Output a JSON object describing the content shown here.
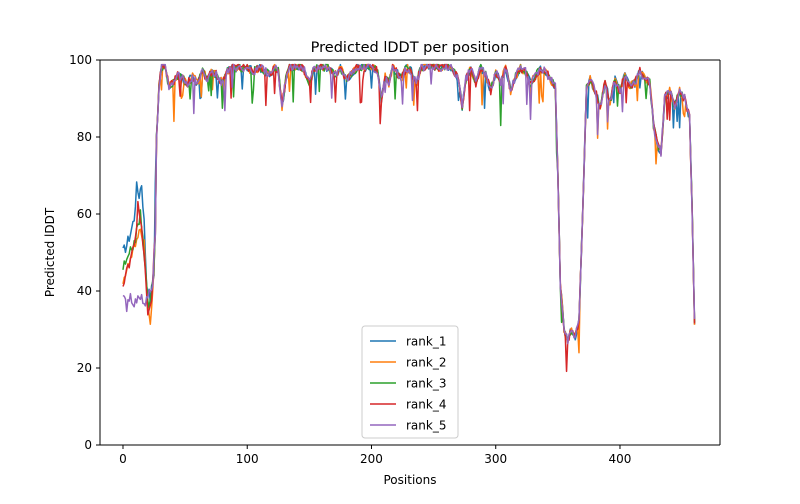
{
  "chart_data": {
    "type": "line",
    "title": "Predicted lDDT per position",
    "xlabel": "Positions",
    "ylabel": "Predicted lDDT",
    "xlim": [
      -18.5,
      480.5
    ],
    "ylim": [
      0,
      100
    ],
    "xticks": [
      0,
      100,
      200,
      300,
      400
    ],
    "xtick_labels": [
      "0",
      "100",
      "200",
      "300",
      "400"
    ],
    "yticks": [
      0,
      20,
      40,
      60,
      80,
      100
    ],
    "ytick_labels": [
      "0",
      "20",
      "40",
      "60",
      "80",
      "100"
    ],
    "grid": false,
    "legend_position": "lower center",
    "base_profile": [
      [
        0,
        45
      ],
      [
        3,
        47
      ],
      [
        6,
        50
      ],
      [
        9,
        53
      ],
      [
        12,
        56
      ],
      [
        15,
        55
      ],
      [
        18,
        42
      ],
      [
        21,
        36
      ],
      [
        24,
        44
      ],
      [
        27,
        80
      ],
      [
        29,
        93
      ],
      [
        31,
        98
      ],
      [
        34,
        98.5
      ],
      [
        37,
        93
      ],
      [
        40,
        94
      ],
      [
        44,
        96
      ],
      [
        48,
        95
      ],
      [
        52,
        94
      ],
      [
        56,
        96
      ],
      [
        60,
        94
      ],
      [
        64,
        97
      ],
      [
        68,
        95
      ],
      [
        72,
        97
      ],
      [
        76,
        96
      ],
      [
        80,
        94
      ],
      [
        84,
        97
      ],
      [
        88,
        98
      ],
      [
        95,
        98
      ],
      [
        100,
        98
      ],
      [
        105,
        97
      ],
      [
        110,
        98
      ],
      [
        115,
        97
      ],
      [
        118,
        96
      ],
      [
        122,
        98
      ],
      [
        125,
        97
      ],
      [
        128,
        88
      ],
      [
        131,
        95
      ],
      [
        134,
        98
      ],
      [
        140,
        98.5
      ],
      [
        145,
        98
      ],
      [
        150,
        94
      ],
      [
        153,
        97
      ],
      [
        158,
        98.5
      ],
      [
        165,
        98
      ],
      [
        170,
        96
      ],
      [
        175,
        98
      ],
      [
        180,
        95
      ],
      [
        185,
        97
      ],
      [
        190,
        98.5
      ],
      [
        195,
        98
      ],
      [
        200,
        98.5
      ],
      [
        205,
        97
      ],
      [
        208,
        90
      ],
      [
        211,
        96
      ],
      [
        214,
        94
      ],
      [
        217,
        98
      ],
      [
        220,
        97
      ],
      [
        224,
        95
      ],
      [
        228,
        98
      ],
      [
        232,
        97
      ],
      [
        236,
        94
      ],
      [
        240,
        98
      ],
      [
        245,
        98.5
      ],
      [
        250,
        98.5
      ],
      [
        255,
        98
      ],
      [
        260,
        98.5
      ],
      [
        265,
        98
      ],
      [
        270,
        95
      ],
      [
        273,
        88
      ],
      [
        276,
        95
      ],
      [
        280,
        98
      ],
      [
        284,
        94
      ],
      [
        288,
        98
      ],
      [
        292,
        96
      ],
      [
        296,
        92
      ],
      [
        300,
        97
      ],
      [
        304,
        94
      ],
      [
        308,
        98
      ],
      [
        312,
        92
      ],
      [
        316,
        96
      ],
      [
        320,
        98
      ],
      [
        324,
        97
      ],
      [
        328,
        94
      ],
      [
        332,
        96
      ],
      [
        336,
        98
      ],
      [
        340,
        97
      ],
      [
        344,
        95
      ],
      [
        348,
        93
      ],
      [
        350,
        70
      ],
      [
        352,
        42
      ],
      [
        355,
        30
      ],
      [
        358,
        27
      ],
      [
        361,
        30
      ],
      [
        364,
        28
      ],
      [
        367,
        32
      ],
      [
        370,
        60
      ],
      [
        373,
        93
      ],
      [
        376,
        95
      ],
      [
        380,
        92
      ],
      [
        384,
        88
      ],
      [
        388,
        94
      ],
      [
        392,
        89
      ],
      [
        396,
        95
      ],
      [
        400,
        92
      ],
      [
        404,
        96
      ],
      [
        408,
        93
      ],
      [
        412,
        94
      ],
      [
        416,
        97
      ],
      [
        420,
        95
      ],
      [
        424,
        94
      ],
      [
        427,
        83
      ],
      [
        430,
        78
      ],
      [
        433,
        76
      ],
      [
        436,
        90
      ],
      [
        440,
        92
      ],
      [
        444,
        88
      ],
      [
        448,
        92
      ],
      [
        452,
        90
      ],
      [
        456,
        85
      ],
      [
        458,
        62
      ],
      [
        460,
        32
      ]
    ],
    "series": [
      {
        "name": "rank_1",
        "color": "#1f77b4",
        "overrides": [
          [
            0,
            50
          ],
          [
            3,
            52
          ],
          [
            6,
            55
          ],
          [
            9,
            59
          ],
          [
            11,
            67
          ],
          [
            13,
            65
          ],
          [
            15,
            68
          ],
          [
            17,
            58
          ],
          [
            19,
            42
          ],
          [
            22,
            38
          ],
          [
            25,
            45
          ]
        ]
      },
      {
        "name": "rank_2",
        "color": "#ff7f0e",
        "overrides": [
          [
            0,
            43
          ],
          [
            4,
            46
          ],
          [
            8,
            50
          ],
          [
            11,
            52
          ],
          [
            14,
            57
          ],
          [
            17,
            52
          ],
          [
            20,
            36
          ],
          [
            22,
            30
          ],
          [
            24,
            40
          ],
          [
            26,
            55
          ]
        ]
      },
      {
        "name": "rank_3",
        "color": "#2ca02c",
        "overrides": [
          [
            0,
            46
          ],
          [
            4,
            48
          ],
          [
            8,
            52
          ],
          [
            11,
            55
          ],
          [
            14,
            60
          ],
          [
            16,
            55
          ],
          [
            18,
            45
          ],
          [
            21,
            35
          ],
          [
            24,
            42
          ],
          [
            26,
            55
          ]
        ]
      },
      {
        "name": "rank_4",
        "color": "#d62728",
        "overrides": [
          [
            0,
            41
          ],
          [
            4,
            46
          ],
          [
            8,
            52
          ],
          [
            10,
            54
          ],
          [
            12,
            62
          ],
          [
            14,
            58
          ],
          [
            17,
            50
          ],
          [
            20,
            33
          ],
          [
            23,
            38
          ],
          [
            26,
            55
          ]
        ]
      },
      {
        "name": "rank_5",
        "color": "#9467bd",
        "overrides": [
          [
            0,
            38
          ],
          [
            3,
            36
          ],
          [
            6,
            39
          ],
          [
            9,
            35
          ],
          [
            12,
            40
          ],
          [
            15,
            38
          ],
          [
            18,
            36
          ],
          [
            21,
            40
          ],
          [
            24,
            42
          ],
          [
            26,
            55
          ]
        ]
      }
    ]
  }
}
